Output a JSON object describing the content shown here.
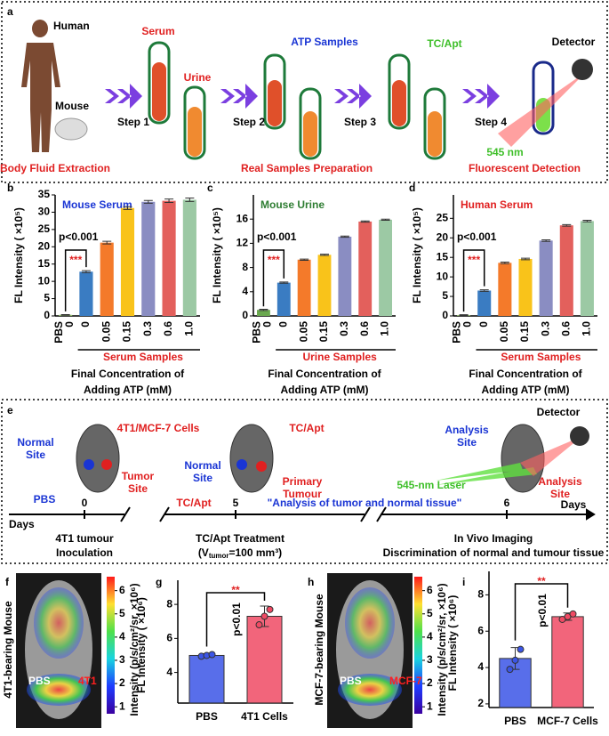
{
  "panel_a": {
    "label": "a",
    "human": "Human",
    "mouse": "Mouse",
    "extraction": "Body Fluid Extraction",
    "serum": "Serum",
    "urine": "Urine",
    "step1": "Step 1",
    "step2": "Step 2",
    "atp": "ATP Samples",
    "step3": "Step 3",
    "tcapt": "TC/Apt",
    "step4": "Step 4",
    "detector": "Detector",
    "wavelength": "545 nm",
    "preparation": "Real Samples Preparation",
    "detection": "Fluorescent Detection"
  },
  "chart_data": [
    {
      "type": "bar",
      "panel_label": "b",
      "title": "Mouse Serum",
      "title_color": "#1a35d4",
      "ylabel": "FL Intensity ( ×10⁵)",
      "pbs_label": "PBS",
      "categories": [
        "0",
        "0",
        "0.05",
        "0.15",
        "0.3",
        "0.6",
        "1.0"
      ],
      "values": [
        0.3,
        12.8,
        21.2,
        31.2,
        33.0,
        33.3,
        33.6
      ],
      "errors": [
        0.1,
        0.3,
        0.4,
        0.4,
        0.4,
        0.5,
        0.5
      ],
      "colors": [
        "#8fbf6a",
        "#3a7cc2",
        "#f47a2a",
        "#f9c31a",
        "#8a8dc2",
        "#e3605c",
        "#9cc9a4"
      ],
      "ylim": [
        0,
        35
      ],
      "yticks": [
        0,
        5,
        10,
        15,
        20,
        25,
        30,
        35
      ],
      "p_value": "p<0.001",
      "stars": "***",
      "group_label": "Serum Samples",
      "xlabel": [
        "Final Concentration of",
        "Adding ATP (mM)"
      ]
    },
    {
      "type": "bar",
      "panel_label": "c",
      "title": "Mouse Urine",
      "title_color": "#2e7d32",
      "ylabel": "FL Intensity ( ×10⁵)",
      "pbs_label": "PBS",
      "categories": [
        "0",
        "0",
        "0.05",
        "0.15",
        "0.3",
        "0.6",
        "1.0"
      ],
      "values": [
        1.0,
        5.5,
        9.3,
        10.1,
        13.1,
        15.6,
        15.9
      ],
      "errors": [
        0.1,
        0.1,
        0.1,
        0.1,
        0.1,
        0.1,
        0.1
      ],
      "colors": [
        "#6aa84f",
        "#3a7cc2",
        "#f47a2a",
        "#f9c31a",
        "#8a8dc2",
        "#e3605c",
        "#9cc9a4"
      ],
      "ylim": [
        0,
        20
      ],
      "yticks": [
        0,
        4,
        8,
        12,
        16
      ],
      "p_value": "p<0.001",
      "stars": "***",
      "group_label": "Urine Samples",
      "xlabel": [
        "Final Concentration of",
        "Adding ATP (mM)"
      ]
    },
    {
      "type": "bar",
      "panel_label": "d",
      "title": "Human Serum",
      "title_color": "#e02020",
      "ylabel": "FL Intensity ( ×10⁵)",
      "pbs_label": "PBS",
      "categories": [
        "0",
        "0",
        "0.05",
        "0.15",
        "0.3",
        "0.6",
        "1.0"
      ],
      "values": [
        0.2,
        6.5,
        13.6,
        14.6,
        19.3,
        23.2,
        24.3
      ],
      "errors": [
        0.1,
        0.2,
        0.2,
        0.2,
        0.2,
        0.2,
        0.2
      ],
      "colors": [
        "#8fbf6a",
        "#3a7cc2",
        "#f47a2a",
        "#f9c31a",
        "#8a8dc2",
        "#e3605c",
        "#9cc9a4"
      ],
      "ylim": [
        0,
        31
      ],
      "yticks": [
        0,
        5,
        10,
        15,
        20,
        25
      ],
      "p_value": "p<0.001",
      "stars": "***",
      "group_label": "Serum Samples",
      "xlabel": [
        "Final Concentration of",
        "Adding ATP (mM)"
      ]
    },
    {
      "type": "bar",
      "panel_label": "g",
      "ylabel": "FL Intensity ( ×10⁶)",
      "categories": [
        "PBS",
        "4T1 Cells"
      ],
      "values": [
        5.0,
        7.3
      ],
      "errors": [
        0.1,
        0.6
      ],
      "points": [
        [
          4.95,
          5.0,
          5.05
        ],
        [
          6.8,
          7.3,
          7.7
        ]
      ],
      "colors": [
        "#3b55e6",
        "#f04a64"
      ],
      "ylim": [
        2.2,
        9
      ],
      "yticks": [
        4,
        6,
        8
      ],
      "p_value": "p<0.01",
      "stars": "**"
    },
    {
      "type": "bar",
      "panel_label": "i",
      "ylabel": "FL Intensity ( ×10⁶)",
      "categories": [
        "PBS",
        "MCF-7 Cells"
      ],
      "values": [
        4.5,
        6.8
      ],
      "errors": [
        0.6,
        0.2
      ],
      "points": [
        [
          3.9,
          4.4,
          5.0
        ],
        [
          6.65,
          6.8,
          6.95
        ]
      ],
      "colors": [
        "#3b55e6",
        "#f04a64"
      ],
      "ylim": [
        1.8,
        8.9
      ],
      "yticks": [
        2,
        4,
        6,
        8
      ],
      "p_value": "p<0.01",
      "stars": "**"
    }
  ],
  "panel_e": {
    "label": "e",
    "cells": "4T1/MCF-7 Cells",
    "normal_site_1": [
      "Normal",
      "Site"
    ],
    "tumor_site": [
      "Tumor",
      "Site"
    ],
    "pbs": "PBS",
    "days_start": "Days",
    "day0": "0",
    "inoculation": [
      "4T1 tumour",
      "Inoculation"
    ],
    "normal_site_2": [
      "Normal",
      "Site"
    ],
    "tcapt_1": "TC/Apt",
    "primary": [
      "Primary",
      "Tumour"
    ],
    "tcapt_2": "TC/Apt",
    "day5": "5",
    "analysis_note": "\"Analysis of tumor and normal tissue\"",
    "treatment": "TC/Apt Treatment",
    "volume": [
      "(V",
      "tumor",
      "=100 mm³)"
    ],
    "detector": "Detector",
    "analysis_site_1": [
      "Analysis",
      "Site"
    ],
    "laser": "545-nm Laser",
    "analysis_site_2": [
      "Analysis",
      "Site"
    ],
    "day6": "6",
    "days_end": "Days",
    "imaging": "In Vivo Imaging",
    "discrimination": "Discrimination of normal and tumour tissue"
  },
  "panel_f": {
    "label": "f",
    "side_label": "4T1-bearing Mouse",
    "pbs": "PBS",
    "tumor": "4T1",
    "colorbar_label": "Intensity (p/s/cm²/sr, ×10⁶)",
    "colorbar_lim": [
      0.7,
      6.6
    ],
    "colorbar_ticks": [
      1,
      2,
      3,
      4,
      5,
      6
    ]
  },
  "panel_h": {
    "label": "h",
    "side_label": "MCF-7-bearing Mouse",
    "pbs": "PBS",
    "tumor": "MCF-7",
    "colorbar_label": "Intensity (p/s/cm²/sr, ×10⁶)",
    "colorbar_lim": [
      0.7,
      6.6
    ],
    "colorbar_ticks": [
      1,
      2,
      3,
      4,
      5,
      6
    ]
  }
}
